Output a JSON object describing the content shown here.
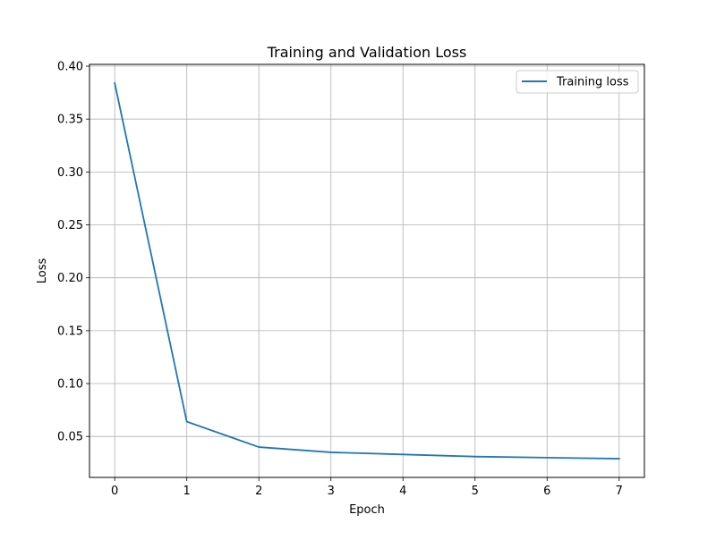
{
  "chart_data": {
    "type": "line",
    "title": "Training and Validation Loss",
    "xlabel": "Epoch",
    "ylabel": "Loss",
    "x": [
      0,
      1,
      2,
      3,
      4,
      5,
      6,
      7
    ],
    "series": [
      {
        "name": "Training loss",
        "values": [
          0.384,
          0.064,
          0.04,
          0.035,
          0.033,
          0.031,
          0.03,
          0.029
        ],
        "color": "#1f77b4"
      }
    ],
    "xlim": [
      -0.35,
      7.35
    ],
    "ylim": [
      0.0113,
      0.4017
    ],
    "xticks": [
      0,
      1,
      2,
      3,
      4,
      5,
      6,
      7
    ],
    "yticks": [
      0.05,
      0.1,
      0.15,
      0.2,
      0.25,
      0.3,
      0.35,
      0.4
    ],
    "ytick_labels": [
      "0.05",
      "0.10",
      "0.15",
      "0.20",
      "0.25",
      "0.30",
      "0.35",
      "0.40"
    ],
    "grid": true,
    "legend_position": "top-right"
  }
}
